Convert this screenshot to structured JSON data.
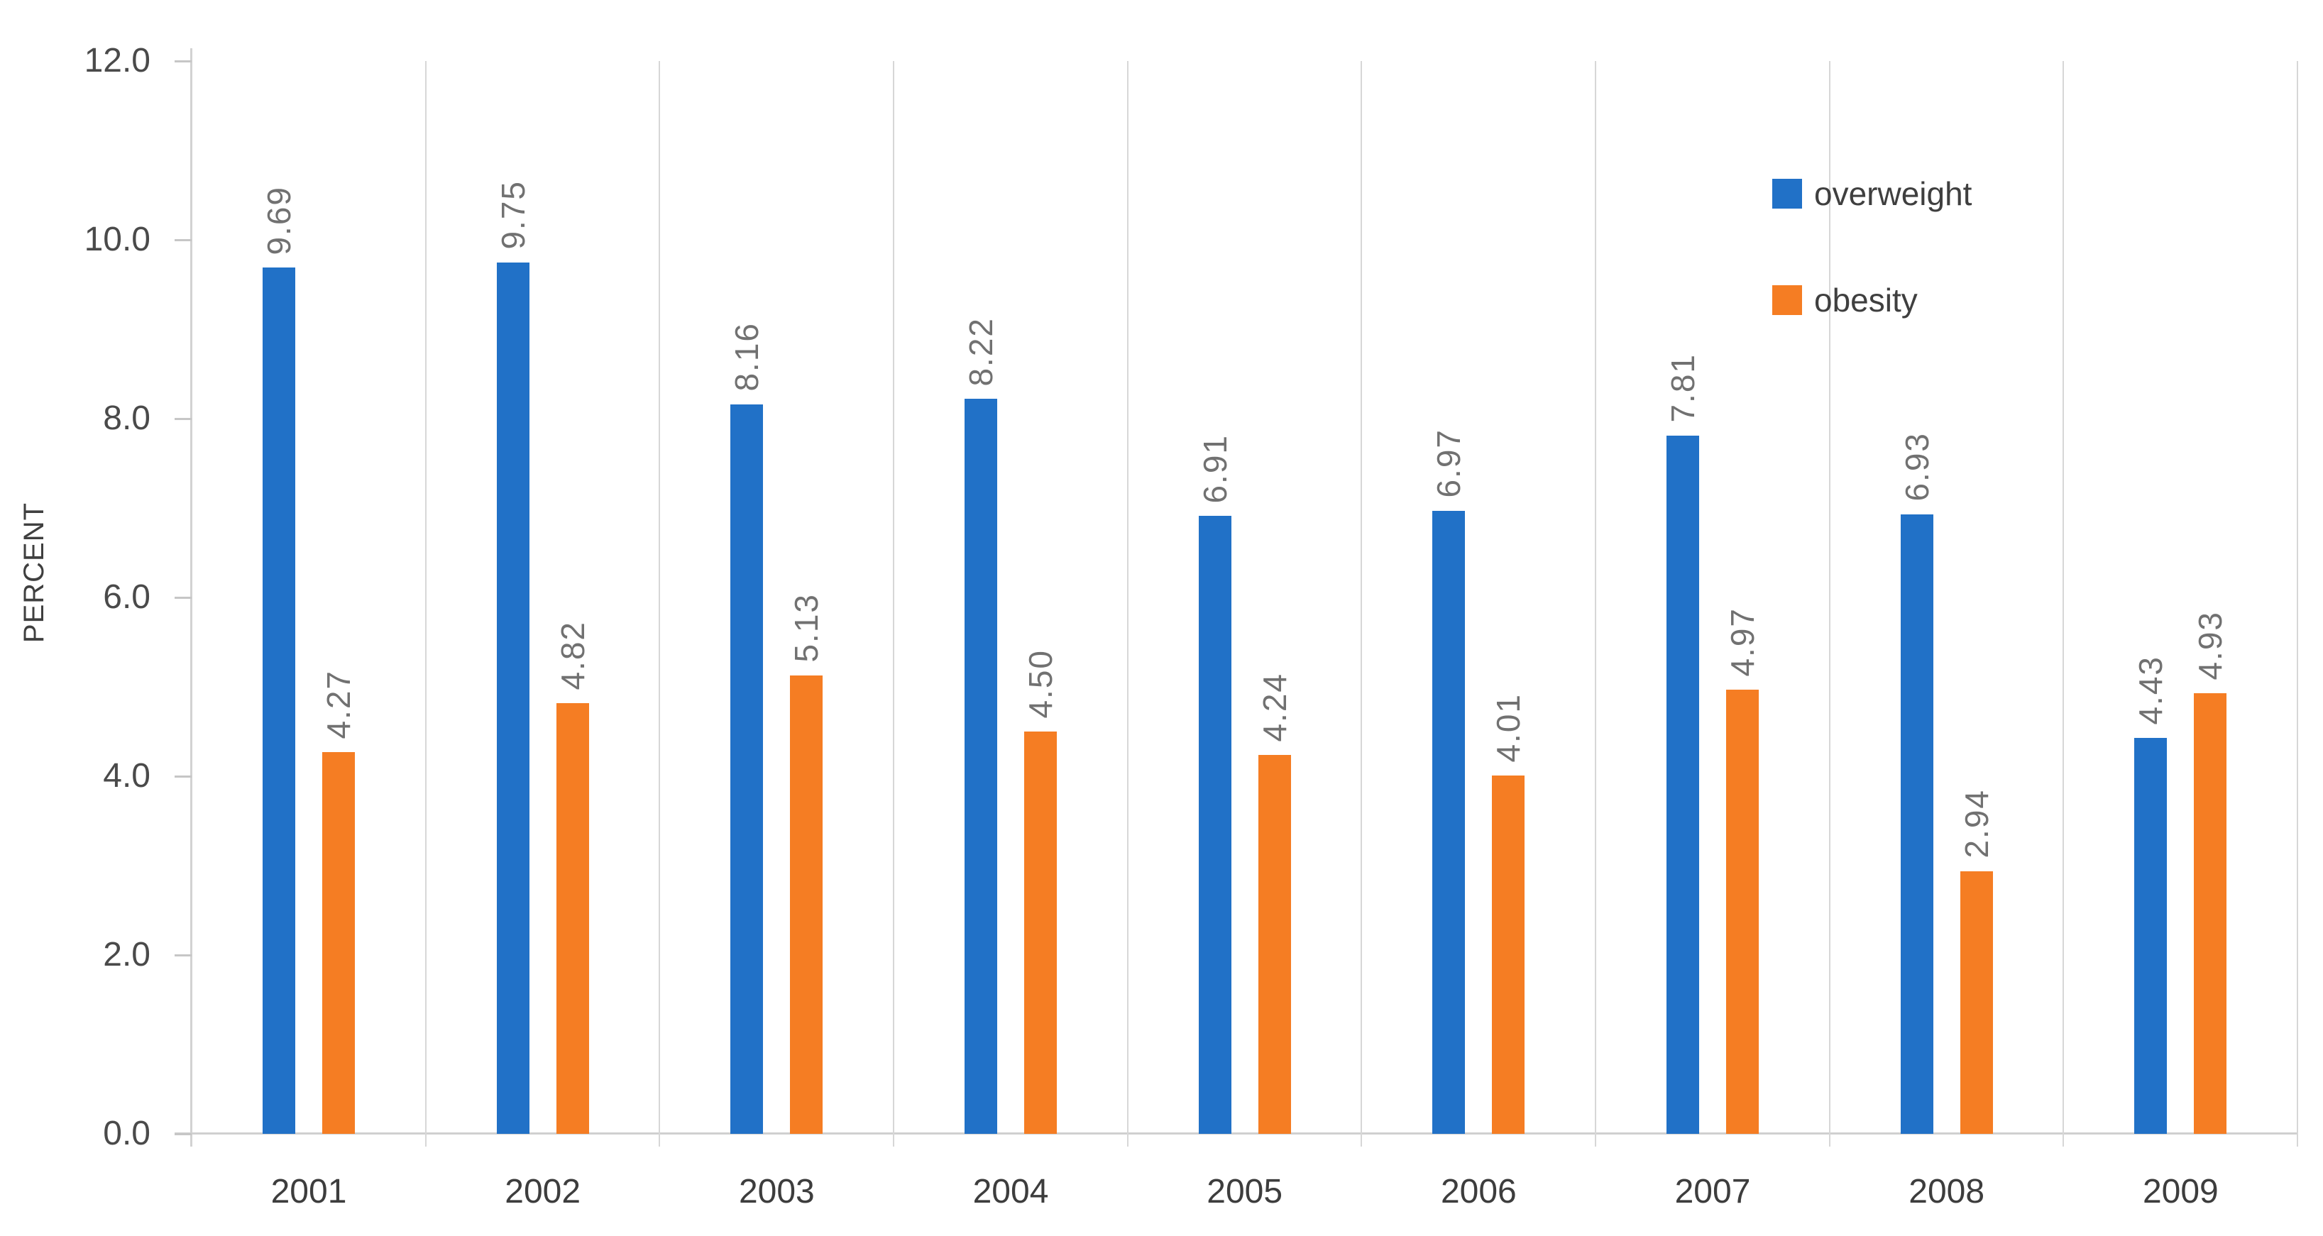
{
  "chart": {
    "y_tick_labels": [
      "12.0",
      "10.0",
      "8.0",
      "6.0",
      "4.0",
      "2.0",
      "0.0"
    ],
    "colors": {
      "overweight": "#2171c7",
      "obesity": "#f57d23",
      "gridline": "#d7d7d7",
      "data_label": "#717171",
      "axis_text": "#4a4a4a"
    }
  },
  "chart_data": {
    "type": "bar",
    "title": "",
    "xlabel": "",
    "ylabel": "PERCENT",
    "ylim": [
      0,
      12
    ],
    "y_tick_step": 2,
    "grid": "vertical category-boundary gridlines only",
    "legend_position": "upper-right inside plot",
    "data_label_rotation": -90,
    "categories": [
      "2001",
      "2002",
      "2003",
      "2004",
      "2005",
      "2006",
      "2007",
      "2008",
      "2009"
    ],
    "series": [
      {
        "name": "overweight",
        "color": "#2171c7",
        "values": [
          9.69,
          9.75,
          8.16,
          8.22,
          6.91,
          6.97,
          7.81,
          6.93,
          4.43
        ],
        "labels": [
          "9.69",
          "9.75",
          "8.16",
          "8.22",
          "6.91",
          "6.97",
          "7.81",
          "6.93",
          "4.43"
        ]
      },
      {
        "name": "obesity",
        "color": "#f57d23",
        "values": [
          4.27,
          4.82,
          5.13,
          4.5,
          4.24,
          4.01,
          4.97,
          2.94,
          4.93
        ],
        "labels": [
          "4.27",
          "4.82",
          "5.13",
          "4.50",
          "4.24",
          "4.01",
          "4.97",
          "2.94",
          "4.93"
        ]
      }
    ]
  }
}
